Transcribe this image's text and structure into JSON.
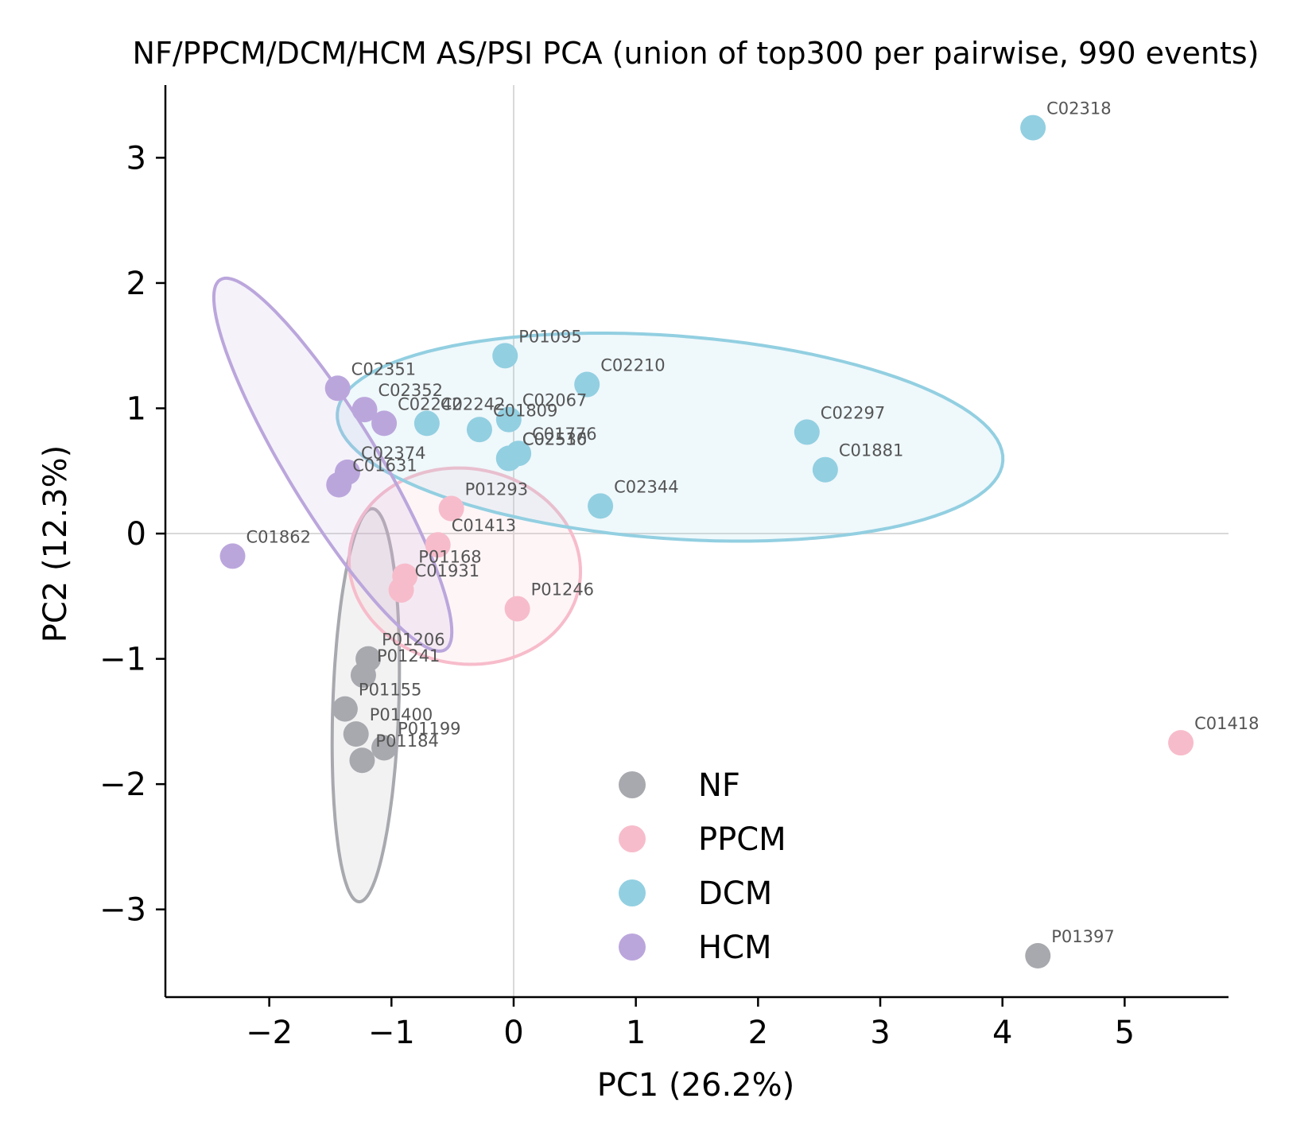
{
  "chart_data": {
    "type": "scatter",
    "title": "NF/PPCM/DCM/HCM AS/PSI PCA (union of top300 per pairwise, 990 events)",
    "xlabel": "PC1 (26.2%)",
    "ylabel": "PC2 (12.3%)",
    "xlim": [
      -2.85,
      5.85
    ],
    "ylim": [
      -3.7,
      3.58
    ],
    "xticks": [
      -2,
      -1,
      0,
      1,
      2,
      3,
      4,
      5
    ],
    "yticks": [
      -3,
      -2,
      -1,
      0,
      1,
      2,
      3
    ],
    "xtick_labels": [
      "−2",
      "−1",
      "0",
      "1",
      "2",
      "3",
      "4",
      "5"
    ],
    "ytick_labels": [
      "−3",
      "−2",
      "−1",
      "0",
      "1",
      "2",
      "3"
    ],
    "zero_lines": true,
    "grid": false,
    "legend_position": "lower-center",
    "series": [
      {
        "name": "NF",
        "color": "#a8a9ae",
        "ellipse": {
          "cx": -1.21,
          "cy": -1.37,
          "rx": 1.57,
          "ry": 0.27,
          "angle_deg": -92
        },
        "points": [
          {
            "label": "P01206",
            "x": -1.19,
            "y": -1.0
          },
          {
            "label": "P01241",
            "x": -1.23,
            "y": -1.13
          },
          {
            "label": "P01155",
            "x": -1.38,
            "y": -1.4
          },
          {
            "label": "P01400",
            "x": -1.29,
            "y": -1.6
          },
          {
            "label": "P01199",
            "x": -1.06,
            "y": -1.71
          },
          {
            "label": "P01184",
            "x": -1.24,
            "y": -1.81
          },
          {
            "label": "P01397",
            "x": 4.29,
            "y": -3.37
          }
        ]
      },
      {
        "name": "PPCM",
        "color": "#f7bccb",
        "ellipse": {
          "cx": -0.4,
          "cy": -0.26,
          "rx": 0.95,
          "ry": 0.78,
          "angle_deg": -8
        },
        "points": [
          {
            "label": "P01293",
            "x": -0.51,
            "y": 0.2
          },
          {
            "label": "C01413",
            "x": -0.62,
            "y": -0.09
          },
          {
            "label": "P01168",
            "x": -0.89,
            "y": -0.34
          },
          {
            "label": "C01931",
            "x": -0.92,
            "y": -0.45
          },
          {
            "label": "P01246",
            "x": 0.03,
            "y": -0.6
          },
          {
            "label": "C01418",
            "x": 5.46,
            "y": -1.67
          }
        ]
      },
      {
        "name": "DCM",
        "color": "#92cfe1",
        "ellipse": {
          "cx": 1.28,
          "cy": 0.77,
          "rx": 2.73,
          "ry": 0.81,
          "angle_deg": -4
        },
        "points": [
          {
            "label": "P01095",
            "x": -0.07,
            "y": 1.42
          },
          {
            "label": "C02210",
            "x": 0.6,
            "y": 1.19
          },
          {
            "label": "C02242",
            "x": -0.71,
            "y": 0.88
          },
          {
            "label": "C01809",
            "x": -0.28,
            "y": 0.83
          },
          {
            "label": "C02067",
            "x": -0.04,
            "y": 0.91
          },
          {
            "label": "C02516",
            "x": -0.04,
            "y": 0.6
          },
          {
            "label": "C01776",
            "x": 0.04,
            "y": 0.64
          },
          {
            "label": "C02530",
            "x": -0.04,
            "y": 0.6
          },
          {
            "label": "C02297",
            "x": 2.4,
            "y": 0.81
          },
          {
            "label": "C01881",
            "x": 2.55,
            "y": 0.51
          },
          {
            "label": "C02344",
            "x": 0.71,
            "y": 0.22
          },
          {
            "label": "C02318",
            "x": 4.25,
            "y": 3.24
          }
        ]
      },
      {
        "name": "HCM",
        "color": "#bba6dc",
        "ellipse": {
          "cx": -1.48,
          "cy": 0.55,
          "rx": 1.74,
          "ry": 0.37,
          "angle_deg": -58
        },
        "points": [
          {
            "label": "C02351",
            "x": -1.44,
            "y": 1.16
          },
          {
            "label": "C02352",
            "x": -1.22,
            "y": 0.99
          },
          {
            "label": "C02242",
            "x": -1.06,
            "y": 0.88
          },
          {
            "label": "C02374",
            "x": -1.36,
            "y": 0.49
          },
          {
            "label": "C01631",
            "x": -1.43,
            "y": 0.39
          },
          {
            "label": "C01862",
            "x": -2.3,
            "y": -0.18
          }
        ]
      }
    ]
  }
}
